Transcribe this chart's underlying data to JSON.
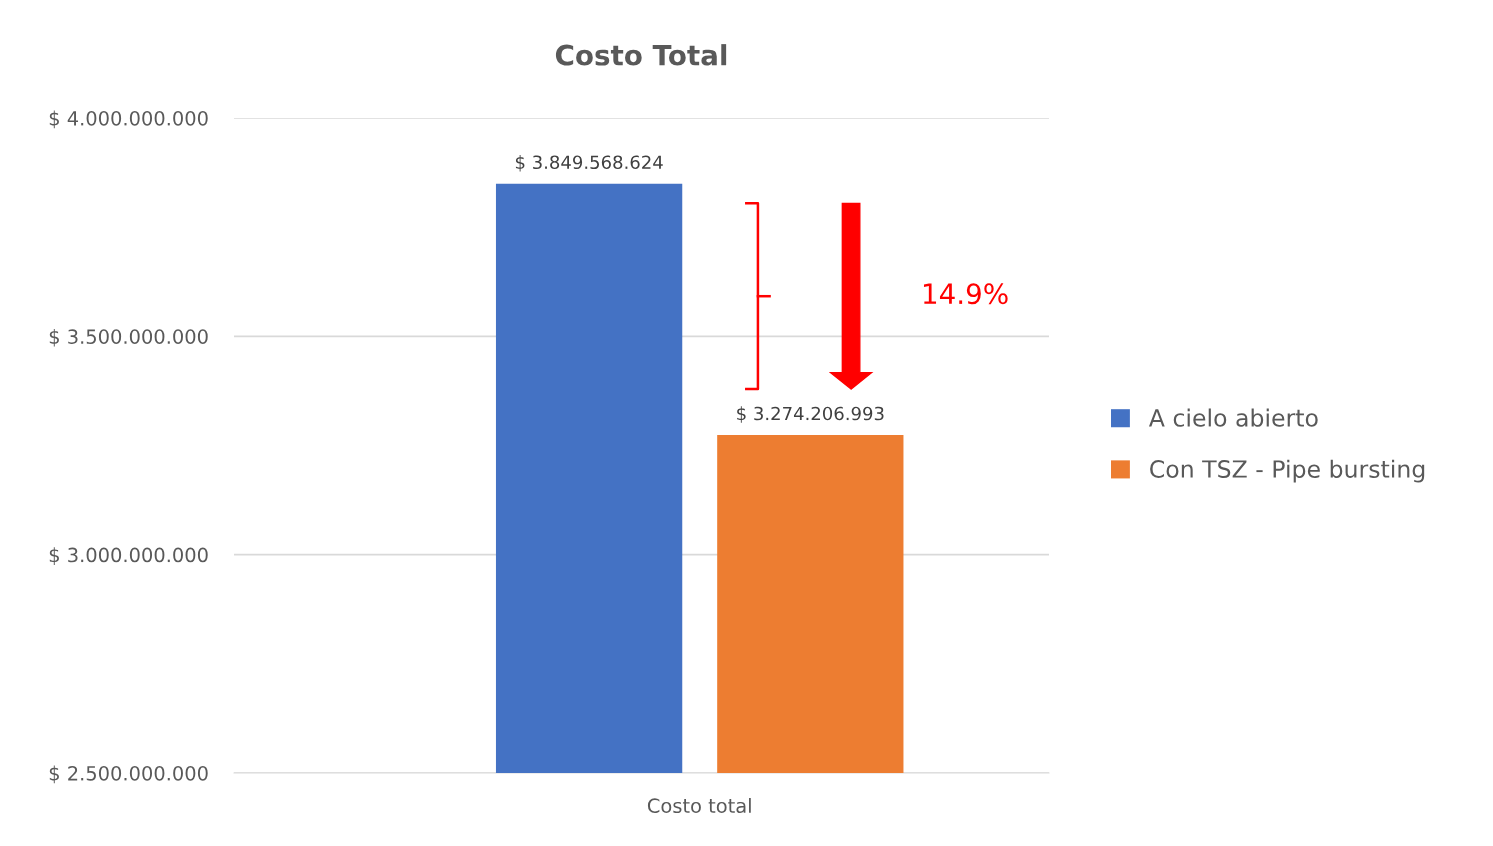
{
  "chart_data": {
    "type": "bar",
    "title": "Costo Total",
    "categories": [
      "Costo total"
    ],
    "series": [
      {
        "name": "A cielo abierto",
        "color": "#4472c4",
        "values": [
          3849568624
        ],
        "value_labels": [
          "$ 3.849.568.624"
        ]
      },
      {
        "name": "Con TSZ - Pipe bursting",
        "color": "#ed7d31",
        "values": [
          3274206993
        ],
        "value_labels": [
          "$ 3.274.206.993"
        ]
      }
    ],
    "ylim": [
      2500000000,
      4000000000
    ],
    "yticks": [
      {
        "value": 2500000000,
        "label": "$ 2.500.000.000"
      },
      {
        "value": 3000000000,
        "label": "$ 3.000.000.000"
      },
      {
        "value": 3500000000,
        "label": "$ 3.500.000.000"
      },
      {
        "value": 4000000000,
        "label": "$ 4.000.000.000"
      }
    ],
    "grid": "y",
    "legend": "right",
    "annotations": [
      "14.9%"
    ]
  }
}
